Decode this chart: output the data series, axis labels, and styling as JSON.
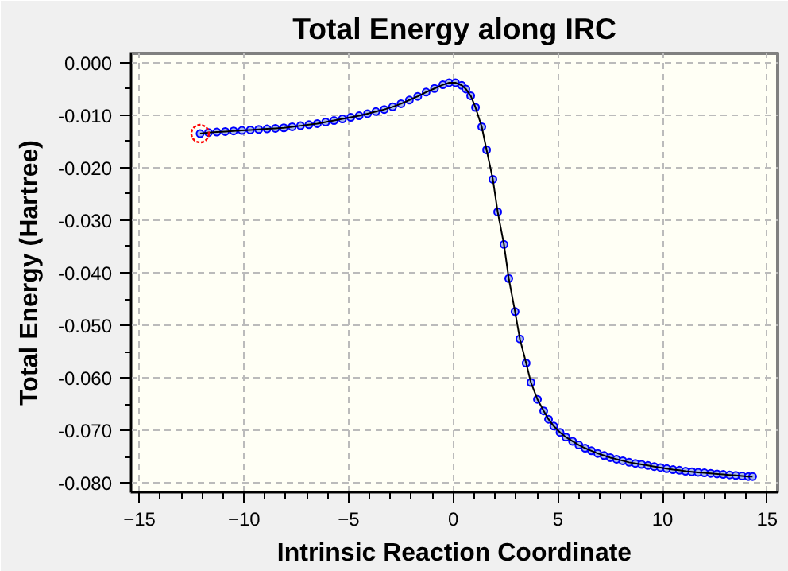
{
  "chart_data": {
    "type": "line",
    "title": "Total Energy along IRC",
    "xlabel": "Intrinsic Reaction Coordinate",
    "ylabel": "Total Energy (Hartree)",
    "xlim": [
      -15.4,
      15.5
    ],
    "ylim": [
      -0.0818,
      0.0018
    ],
    "xticks": [
      -15,
      -10,
      -5,
      0,
      5,
      10,
      15
    ],
    "yticks": [
      {
        "value": 0,
        "label": "0.000"
      },
      {
        "value": -0.01,
        "label": "-0.010"
      },
      {
        "value": -0.02,
        "label": "-0.020"
      },
      {
        "value": -0.03,
        "label": "-0.030"
      },
      {
        "value": -0.04,
        "label": "-0.040"
      },
      {
        "value": -0.05,
        "label": "-0.050"
      },
      {
        "value": -0.06,
        "label": "-0.060"
      },
      {
        "value": -0.07,
        "label": "-0.070"
      },
      {
        "value": -0.08,
        "label": "-0.080"
      }
    ],
    "grid": true,
    "marker": "circle",
    "line_style": "solid",
    "series": [
      {
        "color": "#0000ff",
        "x": [
          -12.1,
          -11.7,
          -11.3,
          -10.9,
          -10.5,
          -10.1,
          -9.7,
          -9.3,
          -8.9,
          -8.5,
          -8.1,
          -7.7,
          -7.3,
          -6.9,
          -6.5,
          -6.1,
          -5.7,
          -5.3,
          -4.9,
          -4.5,
          -4.1,
          -3.7,
          -3.3,
          -2.9,
          -2.5,
          -2.1,
          -1.7,
          -1.3,
          -0.9,
          -0.5,
          -0.2,
          0.1,
          0.4,
          0.6,
          0.83,
          1.06,
          1.36,
          1.59,
          1.89,
          2.12,
          2.42,
          2.65,
          2.95,
          3.18,
          3.48,
          3.71,
          4.02,
          4.32,
          4.55,
          4.8,
          5.1,
          5.38,
          5.7,
          6.0,
          6.3,
          6.6,
          6.9,
          7.2,
          7.5,
          7.8,
          8.1,
          8.4,
          8.7,
          9.0,
          9.3,
          9.6,
          9.9,
          10.2,
          10.5,
          10.8,
          11.1,
          11.4,
          11.7,
          12.0,
          12.3,
          12.6,
          12.9,
          13.2,
          13.5,
          13.8,
          14.1,
          14.3
        ],
        "values": [
          -0.0135,
          -0.0133,
          -0.0132,
          -0.0131,
          -0.013,
          -0.0129,
          -0.0128,
          -0.0127,
          -0.0126,
          -0.0125,
          -0.0124,
          -0.0122,
          -0.012,
          -0.0118,
          -0.0116,
          -0.0113,
          -0.011,
          -0.0107,
          -0.0104,
          -0.0101,
          -0.0097,
          -0.0093,
          -0.0089,
          -0.0084,
          -0.0078,
          -0.0071,
          -0.0064,
          -0.0056,
          -0.0049,
          -0.0042,
          -0.0038,
          -0.0038,
          -0.0043,
          -0.005,
          -0.0063,
          -0.0085,
          -0.0122,
          -0.0166,
          -0.0222,
          -0.0284,
          -0.0346,
          -0.0411,
          -0.0474,
          -0.0526,
          -0.0572,
          -0.0609,
          -0.0641,
          -0.0663,
          -0.0679,
          -0.0692,
          -0.0704,
          -0.0713,
          -0.0721,
          -0.0728,
          -0.0734,
          -0.0739,
          -0.0744,
          -0.0748,
          -0.0752,
          -0.0755,
          -0.0758,
          -0.0761,
          -0.0763,
          -0.0765,
          -0.0767,
          -0.0769,
          -0.0771,
          -0.0773,
          -0.0775,
          -0.0776,
          -0.0778,
          -0.0779,
          -0.078,
          -0.0781,
          -0.0782,
          -0.0783,
          -0.0784,
          -0.0785,
          -0.0786,
          -0.0787,
          -0.0788,
          -0.0788
        ]
      },
      {
        "type": "scatter",
        "color": "#ff0000",
        "x": [
          -12.1
        ],
        "values": [
          -0.0135
        ]
      }
    ]
  }
}
